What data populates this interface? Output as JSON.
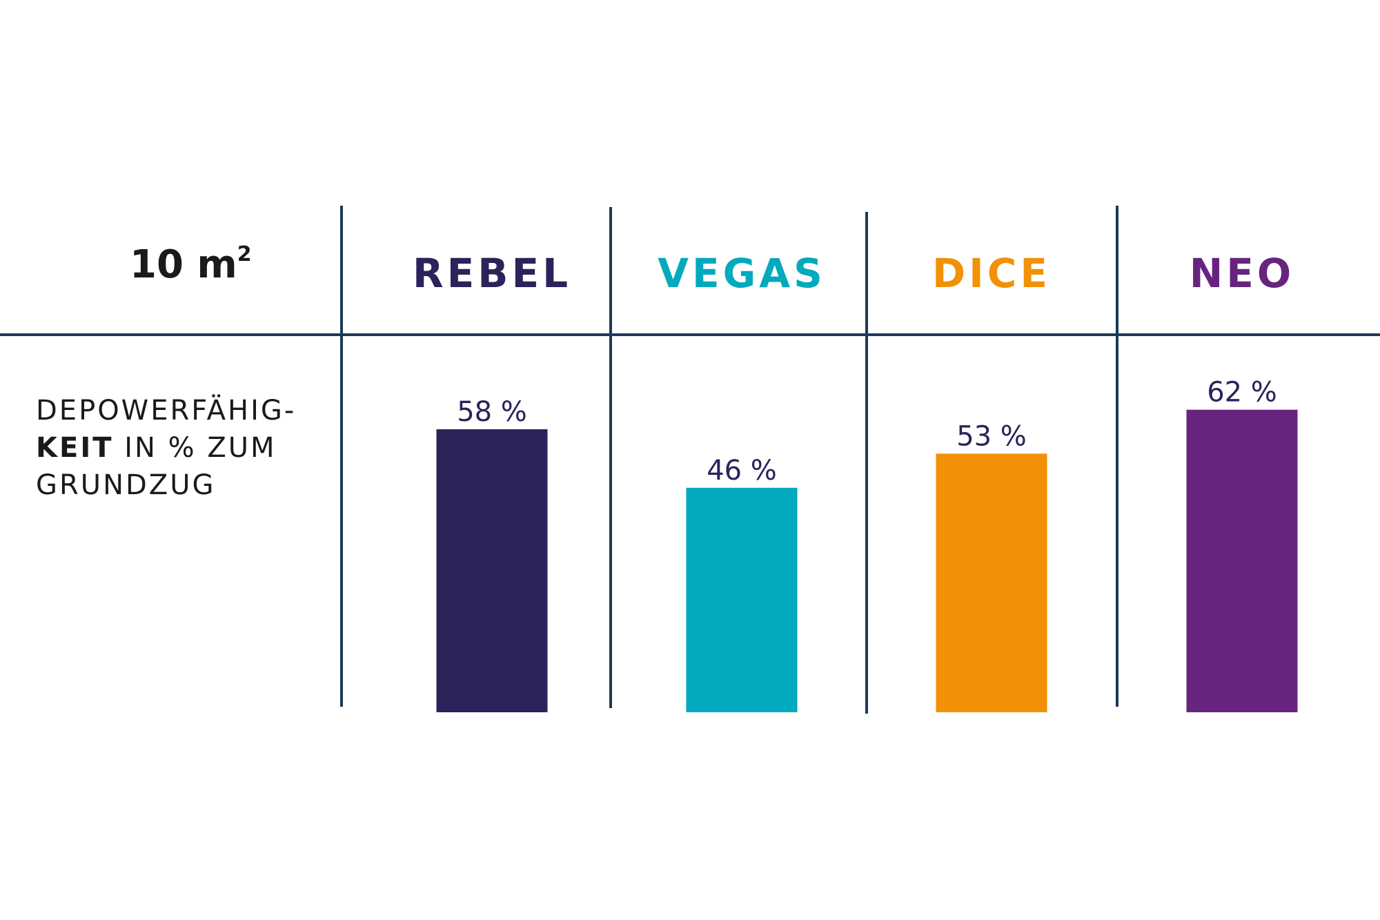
{
  "chart_data": {
    "type": "bar",
    "size_label": "10 m",
    "size_superscript": "2",
    "row_label": {
      "line1": "DEPOWERFÄHIG-",
      "line2_bold": "KEIT",
      "line2_rest": "IN % ZUM",
      "line3": "GRUNDZUG"
    },
    "categories": [
      "REBEL",
      "VEGAS",
      "DICE",
      "NEO"
    ],
    "values": [
      58,
      46,
      53,
      62
    ],
    "value_labels": [
      "58 %",
      "46 %",
      "53 %",
      "62 %"
    ],
    "colors": [
      "#2b2359",
      "#03a9bd",
      "#f29105",
      "#67247f"
    ],
    "label_color": "#2b2359",
    "grid_color": "#1a3a5a",
    "ylim": [
      0,
      100
    ]
  }
}
